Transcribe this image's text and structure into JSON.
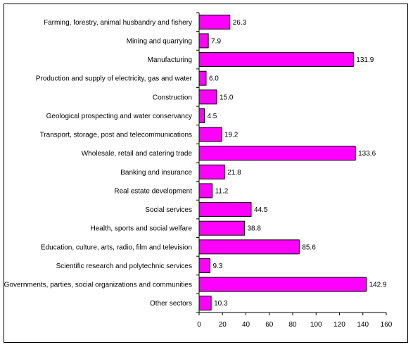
{
  "chart_data": {
    "type": "bar",
    "orientation": "horizontal",
    "title": "",
    "xlabel": "",
    "ylabel": "",
    "categories": [
      "Farming, forestry, animal husbandry and fishery",
      "Mining and quarrying",
      "Manufacturing",
      "Production and supply of electricity, gas and water",
      "Construction",
      "Geological prospecting and water conservancy",
      "Transport, storage, post and telecommunications",
      "Wholesale, retail and catering trade",
      "Banking and insurance",
      "Real estate development",
      "Social services",
      "Health, sports and social welfare",
      "Education, culture, arts, radio, film and television",
      "Scientific research and polytechnic services",
      "Governments, parties, social organizations and communities",
      "Other sectors"
    ],
    "values": [
      26.3,
      7.9,
      131.9,
      6.0,
      15.0,
      4.5,
      19.2,
      133.6,
      21.8,
      11.2,
      44.5,
      38.8,
      85.6,
      9.3,
      142.9,
      10.3
    ],
    "value_labels": [
      "26.3",
      "7.9",
      "131.9",
      "6.0",
      "15.0",
      "4.5",
      "19.2",
      "133.6",
      "21.8",
      "11.2",
      "44.5",
      "38.8",
      "85.6",
      "9.3",
      "142.9",
      "10.3"
    ],
    "xlim": [
      0,
      160
    ],
    "xticks": [
      0,
      20,
      40,
      60,
      80,
      100,
      120,
      140,
      160
    ],
    "grid": false,
    "legend": "none",
    "bar_color": "#ff00ff",
    "bar_edge_color": "#000000"
  }
}
